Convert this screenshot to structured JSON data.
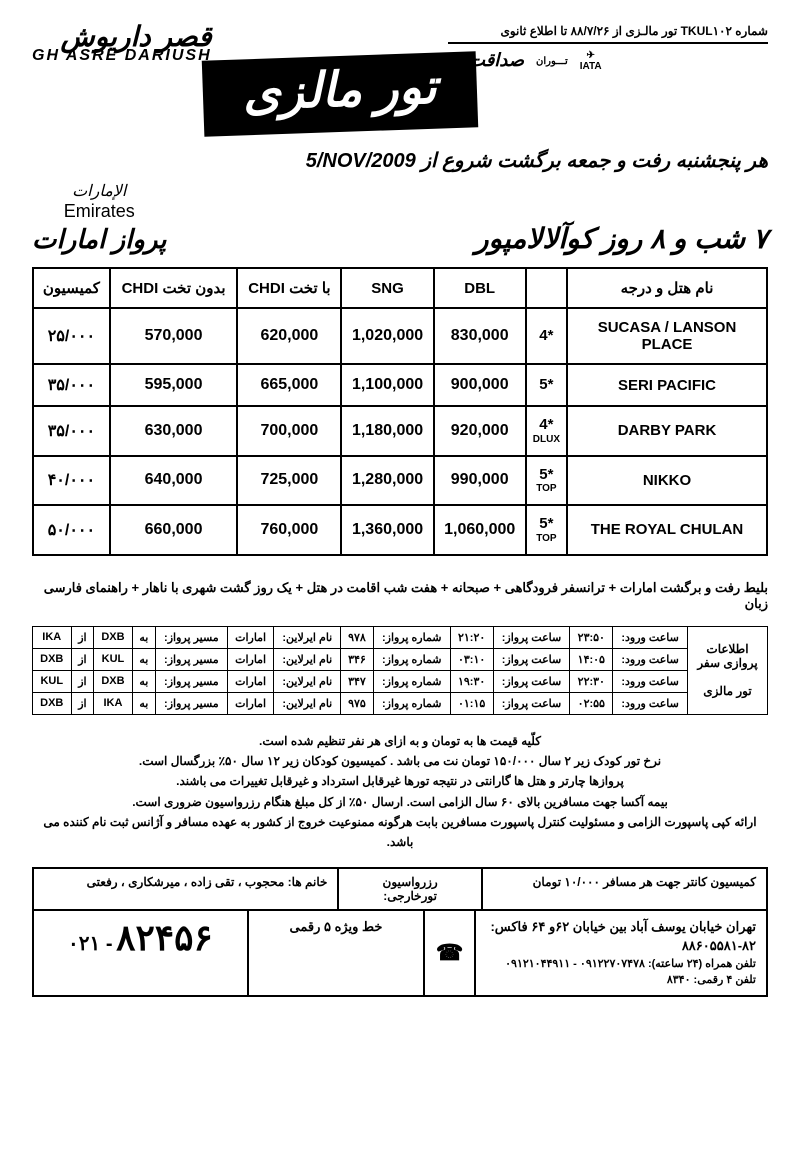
{
  "ref": "شماره TKUL۱۰۲  تور مالـزی از ۸۸/۷/۲۶ تا اطلاع ثانوی",
  "iata": {
    "a": "تـــوران",
    "b": "seصداقت",
    "c": "IATA"
  },
  "logo": {
    "top": "قصر داریوش",
    "sub": "GH ASRE DARIUSH"
  },
  "banner": "تور مالزی",
  "subtitle_pre": "هر پنجشنبه رفت و جمعه برگشت ",
  "subtitle_mid": "شروع از ",
  "subtitle_date": "5/NOV/2009",
  "duration": "۷ شب و ۸ روز کوآلالامپور",
  "emirates": {
    "ar": "الإمارات",
    "en": "Emirates",
    "fa": "پرواز امارات"
  },
  "price": {
    "headers": [
      "کمیسیون",
      "CHDI بدون تخت",
      "CHDI با تخت",
      "SNG",
      "DBL",
      "",
      "نام هتل و درجه"
    ],
    "rows": [
      {
        "com": "۲۵/۰۰۰",
        "c1": "570,000",
        "c2": "620,000",
        "sng": "1,020,000",
        "dbl": "830,000",
        "star": "4*",
        "sub": "",
        "hotel": "SUCASA / LANSON PLACE"
      },
      {
        "com": "۳۵/۰۰۰",
        "c1": "595,000",
        "c2": "665,000",
        "sng": "1,100,000",
        "dbl": "900,000",
        "star": "5*",
        "sub": "",
        "hotel": "SERI  PACIFIC"
      },
      {
        "com": "۳۵/۰۰۰",
        "c1": "630,000",
        "c2": "700,000",
        "sng": "1,180,000",
        "dbl": "920,000",
        "star": "4*",
        "sub": "DLUX",
        "hotel": "DARBY PARK"
      },
      {
        "com": "۴۰/۰۰۰",
        "c1": "640,000",
        "c2": "725,000",
        "sng": "1,280,000",
        "dbl": "990,000",
        "star": "5*",
        "sub": "TOP",
        "hotel": "NIKKO"
      },
      {
        "com": "۵۰/۰۰۰",
        "c1": "660,000",
        "c2": "760,000",
        "sng": "1,360,000",
        "dbl": "1,060,000",
        "star": "5*",
        "sub": "TOP",
        "hotel": "THE ROYAL CHULAN"
      }
    ]
  },
  "includes": "بلیط رفت و برگشت امارات + ترانسفر فرودگاهی + صبحانه + هفت شب اقامت در هتل + یک روز گشت  شهری با ناهار + راهنمای فارسی زبان",
  "flight": {
    "side": "اطلاعات پروازی سفر\n\nتور مالزی",
    "rows": [
      {
        "a": "ساعت ورود:",
        "av": "۲۳:۵۰",
        "b": "ساعت پرواز:",
        "bv": "۲۱:۲۰",
        "c": "شماره پرواز:",
        "cv": "۹۷۸",
        "d": "نام ایرلاین:",
        "dv": "امارات",
        "e": "مسیر پرواز:",
        "eto": "به",
        "e1": "DXB",
        "efr": "از",
        "e2": "IKA"
      },
      {
        "a": "ساعت ورود:",
        "av": "۱۴:۰۵",
        "b": "ساعت پرواز:",
        "bv": "۰۳:۱۰",
        "c": "شماره پرواز:",
        "cv": "۳۴۶",
        "d": "نام ایرلاین:",
        "dv": "امارات",
        "e": "مسیر پرواز:",
        "eto": "به",
        "e1": "KUL",
        "efr": "از",
        "e2": "DXB"
      },
      {
        "a": "ساعت ورود:",
        "av": "۲۲:۳۰",
        "b": "ساعت پرواز:",
        "bv": "۱۹:۳۰",
        "c": "شماره پرواز:",
        "cv": "۳۴۷",
        "d": "نام ایرلاین:",
        "dv": "امارات",
        "e": "مسیر پرواز:",
        "eto": "به",
        "e1": "DXB",
        "efr": "از",
        "e2": "KUL"
      },
      {
        "a": "ساعت ورود:",
        "av": "۰۲:۵۵",
        "b": "ساعت پرواز:",
        "bv": "۰۱:۱۵",
        "c": "شماره پرواز:",
        "cv": "۹۷۵",
        "d": "نام ایرلاین:",
        "dv": "امارات",
        "e": "مسیر پرواز:",
        "eto": "به",
        "e1": "IKA",
        "efr": "از",
        "e2": "DXB"
      }
    ]
  },
  "notes": [
    "کلّیه قیمت ها به تومان و به ازای هر نفر تنظیم شده است.",
    "نرخ تور کودک زیر ۲ سال ۱۵۰/۰۰۰ تومان نت می باشد .     کمیسیون کودکان زیر ۱۲ سال ۵۰٪ بزرگسال است.",
    "پروازها چارتر و هتل ها گارانتی در نتیجه تورها غیرقابل استرداد و غیرقابل تغییرات می باشند.",
    "بیمه آکسا جهت مسافرین بالای ۶۰ سال الزامی است.   ارسال ۵۰٪ از کل مبلغ هنگام رزرواسیون ضروری است.",
    "ارائه کپی پاسپورت الزامی و مسئولیت کنترل پاسپورت مسافرین بابت هرگونه ممنوعیت خروج از کشور به عهده مسافر و آژانس ثبت نام کننده می باشد."
  ],
  "foot": {
    "counter": "کمیسیون کانتر جهت هر مسافر ۱۰/۰۰۰ تومان",
    "res_lbl": "رزرواسیون\nتورخارجی:",
    "staff": "خانم ها:   محجوب ، تقی زاده ، میرشکاری ، رفعتی",
    "addr1": "تهران  خیابان یوسف آباد  بین خیابان ۶۲و ۶۴        فاکس:  ۸۲-۸۸۶۰۵۵۸۱",
    "addr2": "تلفن همراه (۲۴ ساعته):  ۰۹۱۲۲۷۰۷۴۷۸ - ۰۹۱۲۱۰۴۴۹۱۱      تلفن ۴ رقمی:  ۸۳۴۰",
    "line5": "خط ویژه ۵ رقمی",
    "big": "۸۲۴۵۶",
    "pre": "۰۲۱ -"
  }
}
